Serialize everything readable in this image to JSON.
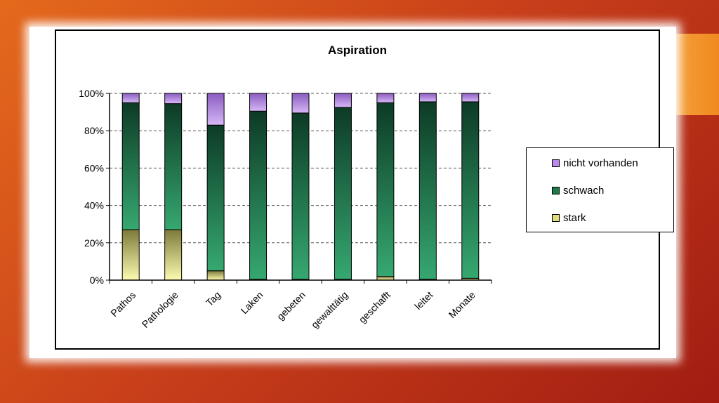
{
  "chart_data": {
    "type": "bar",
    "stacked": true,
    "title": "Aspiration",
    "categories": [
      "Pathos",
      "Pathologie",
      "Tag",
      "Laken",
      "gebeten",
      "gewalttätig",
      "geschafft",
      "leitet",
      "Monate"
    ],
    "series": [
      {
        "name": "stark",
        "values": [
          27,
          27,
          5,
          0.5,
          0.5,
          0.5,
          2,
          0.5,
          1
        ]
      },
      {
        "name": "schwach",
        "values": [
          68,
          67.5,
          78,
          90,
          89,
          92,
          93,
          95,
          94.5
        ]
      },
      {
        "name": "nicht vorhanden",
        "values": [
          5,
          5.5,
          17,
          9.5,
          10.5,
          7.5,
          5,
          4.5,
          4.5
        ]
      }
    ],
    "ylim": [
      0,
      100
    ],
    "yticks": [
      "0%",
      "20%",
      "40%",
      "60%",
      "80%",
      "100%"
    ],
    "grid": true,
    "legend_position": "right",
    "colors": {
      "stark": "#f4ef9a",
      "schwach": "#2e9a66",
      "nicht vorhanden": "#c9a6f0"
    }
  },
  "legend": [
    {
      "label": "nicht vorhanden",
      "color": "#b98ae8"
    },
    {
      "label": "schwach",
      "color": "#1f7a4a"
    },
    {
      "label": "stark",
      "color": "#e3dc7a"
    }
  ]
}
